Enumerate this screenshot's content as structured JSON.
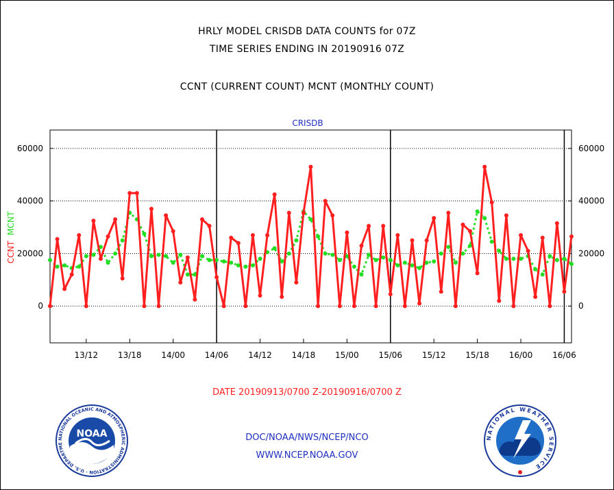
{
  "header": {
    "title_line1": "HRLY MODEL CRISDB DATA COUNTS for 07Z",
    "title_line2": "TIME SERIES ENDING IN 20190916 07Z",
    "subtitle": "CCNT (CURRENT COUNT) MCNT (MONTHLY COUNT)"
  },
  "footer": {
    "agency": "DOC/NOAA/NWS/NCEP/NCO",
    "website": "WWW.NCEP.NOAA.GOV"
  },
  "logos": {
    "left": {
      "name": "noaa-logo",
      "text": "NOAA",
      "ring_text": "NATIONAL OCEANIC AND ATMOSPHERIC ADMINISTRATION · U.S. DEPARTMENT OF COMMERCE"
    },
    "right": {
      "name": "nws-logo",
      "ring_text": "NATIONAL WEATHER SERVICE"
    }
  },
  "colors": {
    "ccnt": "#ff1f1f",
    "mcnt": "#22dd22",
    "panel_title": "#1f2fbf",
    "date_label": "#ff1f1f"
  },
  "chart_data": {
    "type": "line",
    "title": "CRISDB",
    "xlabel": "DATE 20190913/0700 Z-20190916/0700 Z",
    "ylabel_parts": [
      "CCNT",
      "MCNT"
    ],
    "ylim": [
      -14000,
      67000
    ],
    "yticks": [
      0,
      20000,
      40000,
      60000
    ],
    "ytick_labels": [
      "0",
      "20000",
      "40000",
      "60000"
    ],
    "grid": true,
    "xlim": [
      0,
      72
    ],
    "xticks": [
      5,
      11,
      17,
      23,
      29,
      35,
      41,
      47,
      53,
      59,
      65,
      71
    ],
    "xtick_labels": [
      "13/12",
      "13/18",
      "14/00",
      "14/06",
      "14/12",
      "14/18",
      "15/00",
      "15/06",
      "15/12",
      "15/18",
      "16/00",
      "16/06"
    ],
    "day_boundaries": [
      23,
      47,
      71
    ],
    "series": [
      {
        "name": "CCNT",
        "x": [
          0,
          1,
          2,
          3,
          4,
          5,
          6,
          7,
          8,
          9,
          10,
          11,
          12,
          13,
          14,
          15,
          16,
          17,
          18,
          19,
          20,
          21,
          22,
          23,
          24,
          25,
          26,
          27,
          28,
          29,
          30,
          31,
          32,
          33,
          34,
          35,
          36,
          37,
          38,
          39,
          40,
          41,
          42,
          43,
          44,
          45,
          46,
          47,
          48,
          49,
          50,
          51,
          52,
          53,
          54,
          55,
          56,
          57,
          58,
          59,
          60,
          61,
          62,
          63,
          64,
          65,
          66,
          67,
          68,
          69,
          70,
          71,
          72
        ],
        "values": [
          0,
          25500,
          6500,
          12000,
          27000,
          0,
          32500,
          18000,
          26500,
          33000,
          10500,
          43000,
          43000,
          0,
          37000,
          0,
          34500,
          28500,
          9000,
          18500,
          2500,
          33000,
          30500,
          11000,
          0,
          26000,
          24000,
          0,
          27000,
          4000,
          27000,
          42500,
          3500,
          35500,
          9000,
          35500,
          53000,
          0,
          40000,
          34500,
          0,
          28000,
          0,
          23000,
          30500,
          0,
          30500,
          4500,
          27000,
          0,
          25000,
          1000,
          25000,
          33500,
          5500,
          35500,
          0,
          31000,
          28500,
          12500,
          53000,
          39500,
          2000,
          34500,
          0,
          27000,
          21000,
          3500,
          26000,
          0,
          31500,
          5500,
          26500
        ]
      },
      {
        "name": "MCNT",
        "x": [
          0,
          1,
          2,
          3,
          4,
          5,
          6,
          7,
          8,
          9,
          10,
          11,
          12,
          13,
          14,
          15,
          16,
          17,
          18,
          19,
          20,
          21,
          22,
          23,
          24,
          25,
          26,
          27,
          28,
          29,
          30,
          31,
          32,
          33,
          34,
          35,
          36,
          37,
          38,
          39,
          40,
          41,
          42,
          43,
          44,
          45,
          46,
          47,
          48,
          49,
          50,
          51,
          52,
          53,
          54,
          55,
          56,
          57,
          58,
          59,
          60,
          61,
          62,
          63,
          64,
          65,
          66,
          67,
          68,
          69,
          70,
          71,
          72
        ],
        "values": [
          17500,
          15000,
          15500,
          14500,
          15000,
          19000,
          19500,
          22500,
          16500,
          20000,
          25000,
          35500,
          33000,
          27500,
          19000,
          19500,
          19000,
          16500,
          19500,
          12000,
          12000,
          19000,
          17500,
          17500,
          17000,
          16500,
          15500,
          15000,
          15500,
          18000,
          20500,
          22000,
          17000,
          20000,
          25000,
          36000,
          33000,
          26500,
          20000,
          19500,
          17500,
          19000,
          15000,
          12000,
          19500,
          17500,
          18500,
          17500,
          15500,
          16500,
          15500,
          14500,
          16500,
          17000,
          20000,
          22500,
          16500,
          20000,
          23000,
          36000,
          33500,
          24500,
          21000,
          18000,
          18000,
          18000,
          19000,
          14000,
          12000,
          19000,
          17500,
          18000,
          16000
        ]
      }
    ]
  }
}
